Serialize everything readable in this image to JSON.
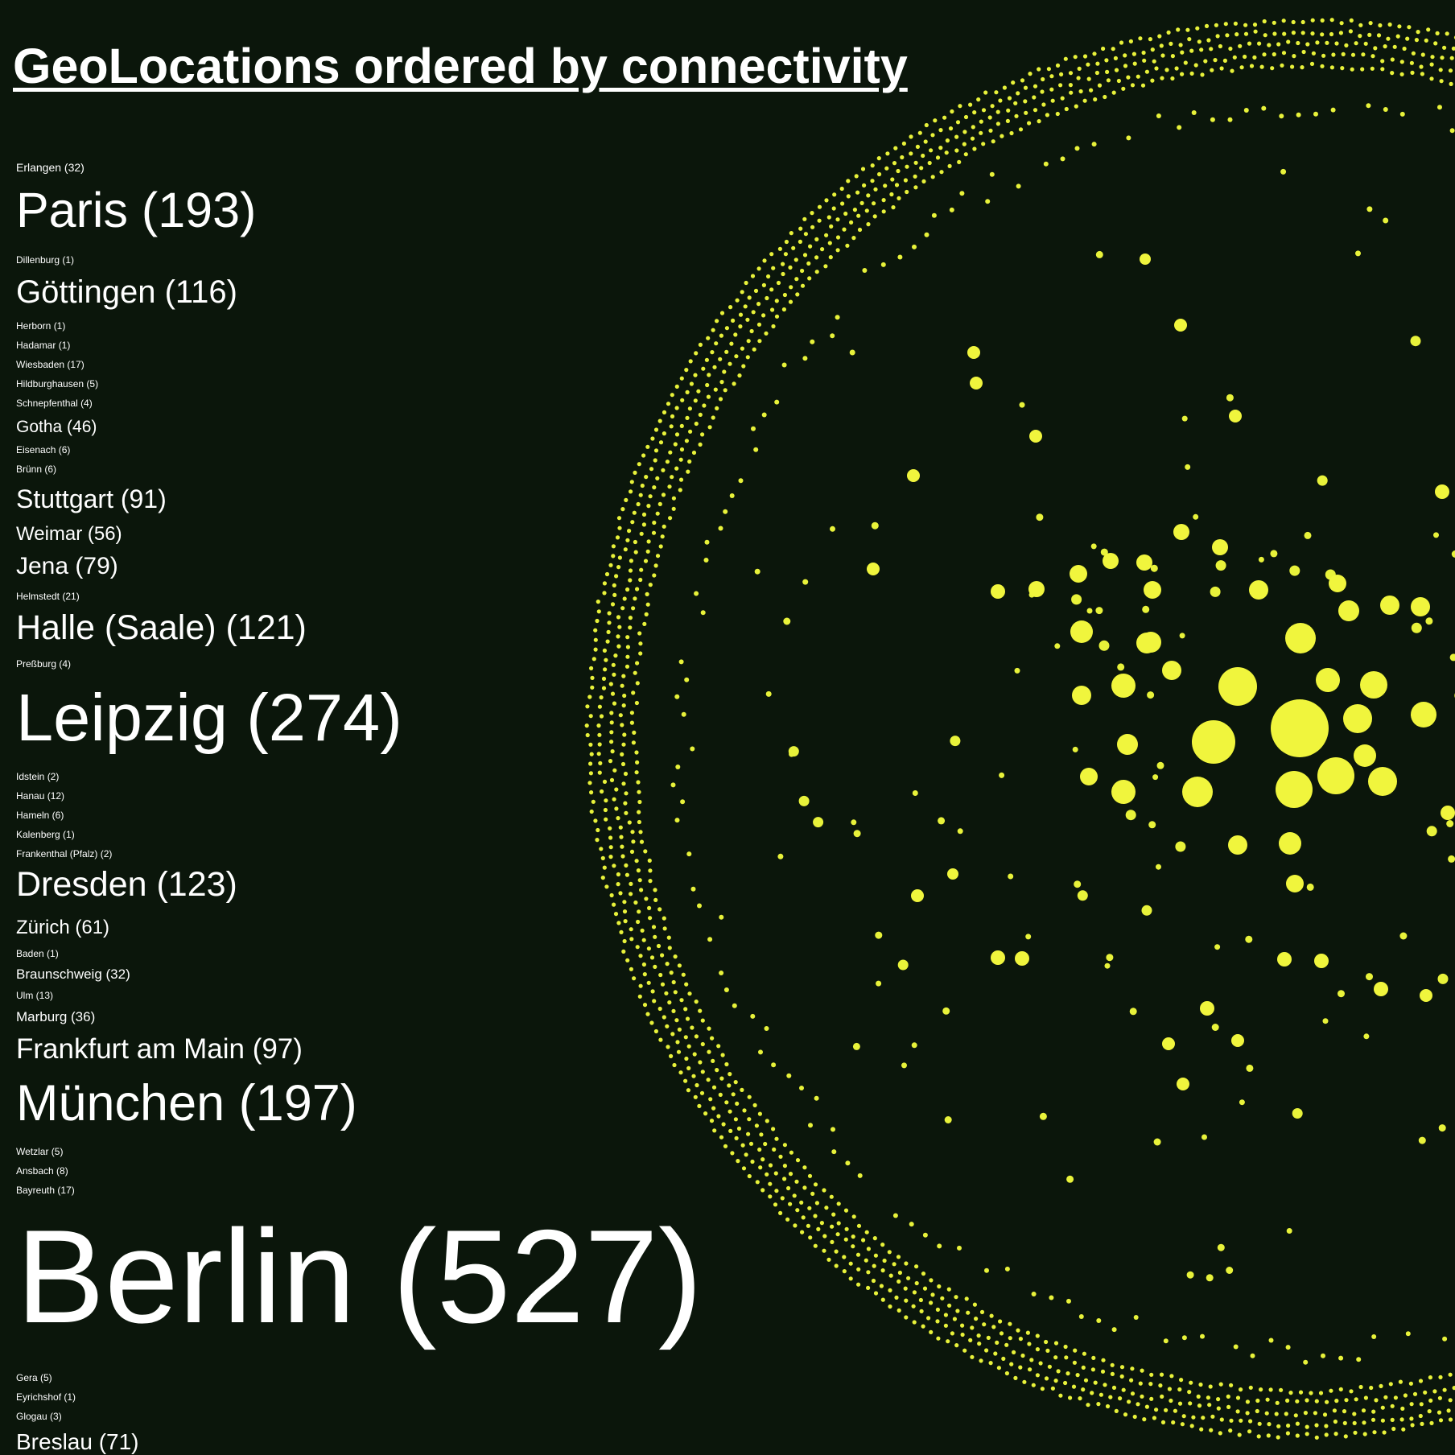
{
  "page": {
    "title": "GeoLocations ordered by connectivity"
  },
  "colors": {
    "background": "#0b160b",
    "text": "#ffffff",
    "node": "#e8f23a",
    "node_core": "#f0f53d"
  },
  "locations": [
    {
      "name": "Erlangen",
      "count": 32,
      "label": "Erlangen (32)"
    },
    {
      "name": "Paris",
      "count": 193,
      "label": "Paris (193)"
    },
    {
      "name": "Dillenburg",
      "count": 1,
      "label": "Dillenburg (1)"
    },
    {
      "name": "Göttingen",
      "count": 116,
      "label": "Göttingen (116)"
    },
    {
      "name": "Herborn",
      "count": 1,
      "label": "Herborn (1)"
    },
    {
      "name": "Hadamar",
      "count": 1,
      "label": "Hadamar (1)"
    },
    {
      "name": "Wiesbaden",
      "count": 17,
      "label": "Wiesbaden (17)"
    },
    {
      "name": "Hildburghausen",
      "count": 5,
      "label": "Hildburghausen (5)"
    },
    {
      "name": "Schnepfenthal",
      "count": 4,
      "label": "Schnepfenthal (4)"
    },
    {
      "name": "Gotha",
      "count": 46,
      "label": "Gotha (46)"
    },
    {
      "name": "Eisenach",
      "count": 6,
      "label": "Eisenach (6)"
    },
    {
      "name": "Brünn",
      "count": 6,
      "label": "Brünn (6)"
    },
    {
      "name": "Stuttgart",
      "count": 91,
      "label": "Stuttgart (91)"
    },
    {
      "name": "Weimar",
      "count": 56,
      "label": "Weimar (56)"
    },
    {
      "name": "Jena",
      "count": 79,
      "label": "Jena (79)"
    },
    {
      "name": "Helmstedt",
      "count": 21,
      "label": "Helmstedt (21)"
    },
    {
      "name": "Halle (Saale)",
      "count": 121,
      "label": "Halle (Saale) (121)"
    },
    {
      "name": "Preßburg",
      "count": 4,
      "label": "Preßburg (4)"
    },
    {
      "name": "Leipzig",
      "count": 274,
      "label": "Leipzig (274)"
    },
    {
      "name": "Idstein",
      "count": 2,
      "label": "Idstein (2)"
    },
    {
      "name": "Hanau",
      "count": 12,
      "label": "Hanau (12)"
    },
    {
      "name": "Hameln",
      "count": 6,
      "label": "Hameln (6)"
    },
    {
      "name": "Kalenberg",
      "count": 1,
      "label": "Kalenberg (1)"
    },
    {
      "name": "Frankenthal (Pfalz)",
      "count": 2,
      "label": "Frankenthal (Pfalz) (2)"
    },
    {
      "name": "Dresden",
      "count": 123,
      "label": "Dresden (123)"
    },
    {
      "name": "Zürich",
      "count": 61,
      "label": "Zürich (61)"
    },
    {
      "name": "Baden",
      "count": 1,
      "label": "Baden (1)"
    },
    {
      "name": "Braunschweig",
      "count": 32,
      "label": "Braunschweig (32)"
    },
    {
      "name": "Ulm",
      "count": 13,
      "label": "Ulm (13)"
    },
    {
      "name": "Marburg",
      "count": 36,
      "label": "Marburg (36)"
    },
    {
      "name": "Frankfurt am Main",
      "count": 97,
      "label": "Frankfurt am Main (97)"
    },
    {
      "name": "München",
      "count": 197,
      "label": "München (197)"
    },
    {
      "name": "Wetzlar",
      "count": 5,
      "label": "Wetzlar (5)"
    },
    {
      "name": "Ansbach",
      "count": 8,
      "label": "Ansbach (8)"
    },
    {
      "name": "Bayreuth",
      "count": 17,
      "label": "Bayreuth (17)"
    },
    {
      "name": "Berlin",
      "count": 527,
      "label": "Berlin (527)"
    },
    {
      "name": "Gera",
      "count": 5,
      "label": "Gera (5)"
    },
    {
      "name": "Eyrichshof",
      "count": 1,
      "label": "Eyrichshof (1)"
    },
    {
      "name": "Glogau",
      "count": 3,
      "label": "Glogau (3)"
    },
    {
      "name": "Breslau",
      "count": 71,
      "label": "Breslau (71)"
    }
  ]
}
